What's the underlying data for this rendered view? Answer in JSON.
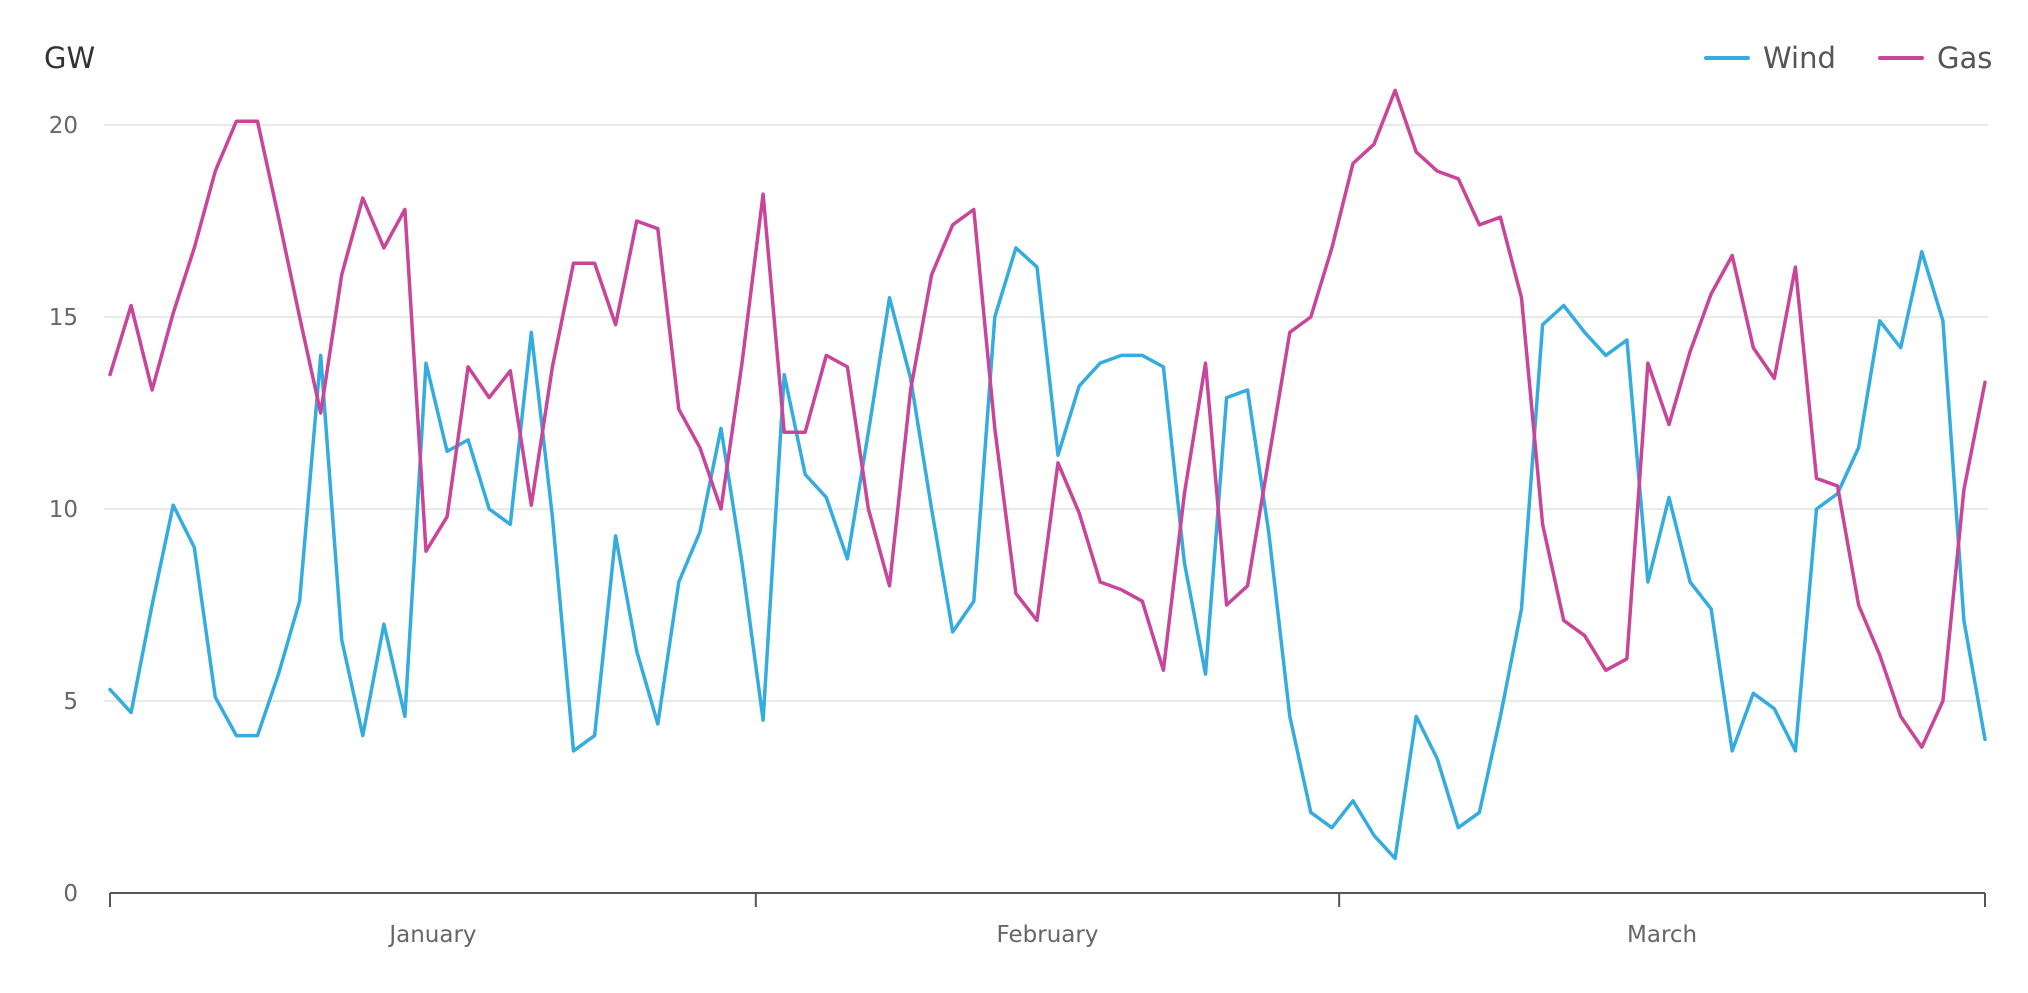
{
  "chart_data": {
    "type": "line",
    "unit_label": "GW",
    "x_unit": "day index (day 0 = 1 January, days 1–90)",
    "ylim": [
      0,
      20
    ],
    "y_ticks": [
      0,
      5,
      10,
      15,
      20
    ],
    "grid": true,
    "legend": {
      "placement": "top-right",
      "entries": [
        "Wind",
        "Gas"
      ]
    },
    "months": [
      {
        "label": "January",
        "start": 0,
        "end": 31
      },
      {
        "label": "February",
        "start": 31,
        "end": 59
      },
      {
        "label": "March",
        "start": 59,
        "end": 90
      }
    ],
    "x": [
      1,
      2,
      3,
      4,
      5,
      6,
      7,
      8,
      9,
      10,
      11,
      12,
      13,
      14,
      15,
      16,
      17,
      18,
      19,
      20,
      21,
      22,
      23,
      24,
      25,
      26,
      27,
      28,
      29,
      30,
      31,
      32,
      33,
      34,
      35,
      36,
      37,
      38,
      39,
      40,
      41,
      42,
      43,
      44,
      45,
      46,
      47,
      48,
      49,
      50,
      51,
      52,
      53,
      54,
      55,
      56,
      57,
      58,
      59,
      60,
      61,
      62,
      63,
      64,
      65,
      66,
      67,
      68,
      69,
      70,
      71,
      72,
      73,
      74,
      75,
      76,
      77,
      78,
      79,
      80,
      81,
      82,
      83,
      84,
      85,
      86,
      87,
      88,
      89,
      90
    ],
    "series": [
      {
        "name": "Wind",
        "color": "#35acdf",
        "values": [
          5.3,
          4.7,
          7.5,
          10.1,
          9.0,
          5.1,
          4.1,
          4.1,
          5.7,
          7.6,
          14.0,
          6.6,
          4.1,
          7.0,
          4.6,
          13.8,
          11.5,
          11.8,
          10.0,
          9.6,
          14.6,
          9.8,
          3.7,
          4.1,
          9.3,
          6.3,
          4.4,
          8.1,
          9.4,
          12.1,
          8.6,
          4.5,
          13.5,
          10.9,
          10.3,
          8.7,
          12.0,
          15.5,
          13.4,
          10.0,
          6.8,
          7.6,
          15.0,
          16.8,
          16.3,
          11.4,
          13.2,
          13.8,
          14.0,
          14.0,
          13.7,
          8.6,
          5.7,
          12.9,
          13.1,
          9.4,
          4.6,
          2.1,
          1.7,
          2.4,
          1.5,
          0.9,
          4.6,
          3.5,
          1.7,
          2.1,
          4.6,
          7.4,
          14.8,
          15.3,
          14.6,
          14.0,
          14.4,
          8.1,
          10.3,
          8.1,
          7.4,
          3.7,
          5.2,
          4.8,
          3.7,
          10.0,
          10.4,
          11.6,
          14.9,
          14.2,
          16.7,
          14.9,
          7.1,
          4.0
        ]
      },
      {
        "name": "Gas",
        "color": "#c8459a",
        "values": [
          13.5,
          15.3,
          13.1,
          15.1,
          16.8,
          18.8,
          20.1,
          20.1,
          17.6,
          15.0,
          12.5,
          16.1,
          18.1,
          16.8,
          17.8,
          8.9,
          9.8,
          13.7,
          12.9,
          13.6,
          10.1,
          13.7,
          16.4,
          16.4,
          14.8,
          17.5,
          17.3,
          12.6,
          11.6,
          10.0,
          13.8,
          18.2,
          12.0,
          12.0,
          14.0,
          13.7,
          10.0,
          8.0,
          13.1,
          16.1,
          17.4,
          17.8,
          12.1,
          7.8,
          7.1,
          11.2,
          9.9,
          8.1,
          7.9,
          7.6,
          5.8,
          10.4,
          13.8,
          7.5,
          8.0,
          11.3,
          14.6,
          15.0,
          16.8,
          19.0,
          19.5,
          20.9,
          19.3,
          18.8,
          18.6,
          17.4,
          17.6,
          15.5,
          9.6,
          7.1,
          6.7,
          5.8,
          6.1,
          13.8,
          12.2,
          14.1,
          15.6,
          16.6,
          14.2,
          13.4,
          16.3,
          10.8,
          10.6,
          7.5,
          6.2,
          4.6,
          3.8,
          5.0,
          10.5,
          13.3
        ]
      }
    ]
  }
}
